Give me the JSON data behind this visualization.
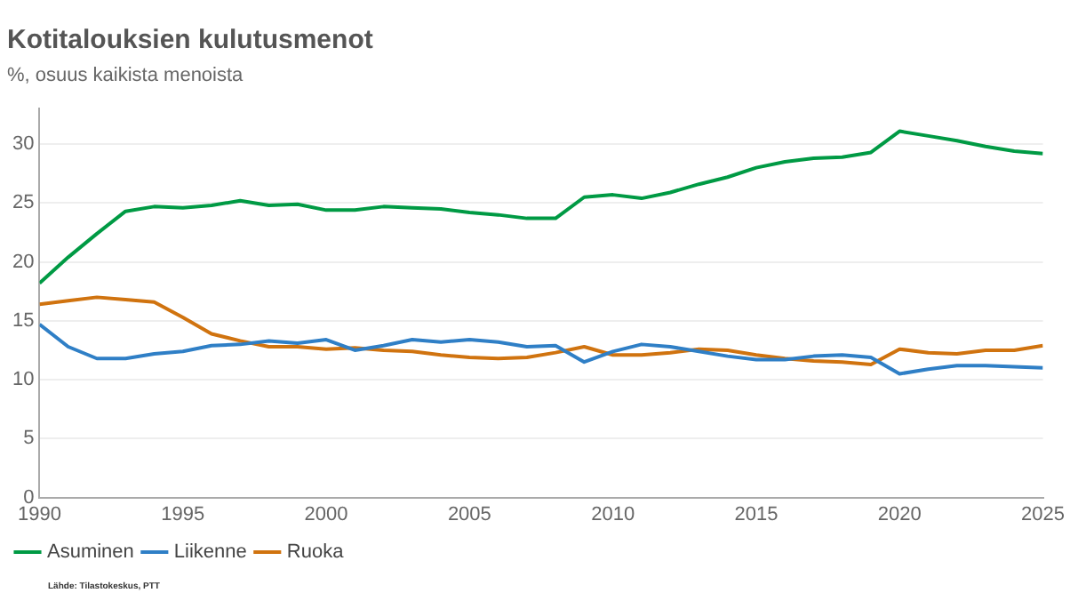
{
  "chart_data": {
    "type": "line",
    "title": "Kotitalouksien kulutusmenot",
    "subtitle": "%, osuus kaikista menoista",
    "annotations": [
      "Lähde: Tilastokeskus, PTT"
    ],
    "x": [
      1990,
      1991,
      1992,
      1993,
      1994,
      1995,
      1996,
      1997,
      1998,
      1999,
      2000,
      2001,
      2002,
      2003,
      2004,
      2005,
      2006,
      2007,
      2008,
      2009,
      2010,
      2011,
      2012,
      2013,
      2014,
      2015,
      2016,
      2017,
      2018,
      2019,
      2020,
      2021,
      2022,
      2023,
      2024,
      2025
    ],
    "series": [
      {
        "name": "Asuminen",
        "color": "#009a44",
        "values": [
          18.2,
          20.4,
          22.4,
          24.3,
          24.7,
          24.6,
          24.8,
          25.2,
          24.8,
          24.9,
          24.4,
          24.4,
          24.7,
          24.6,
          24.5,
          24.2,
          24.0,
          23.7,
          23.7,
          25.5,
          25.7,
          25.4,
          25.9,
          26.6,
          27.2,
          28.0,
          28.5,
          28.8,
          28.9,
          29.3,
          31.1,
          30.7,
          30.3,
          29.8,
          29.4,
          29.2
        ]
      },
      {
        "name": "Liikenne",
        "color": "#2f7fc6",
        "values": [
          14.7,
          12.8,
          11.8,
          11.8,
          12.2,
          12.4,
          12.9,
          13.0,
          13.3,
          13.1,
          13.4,
          12.5,
          12.9,
          13.4,
          13.2,
          13.4,
          13.2,
          12.8,
          12.9,
          11.5,
          12.4,
          13.0,
          12.8,
          12.4,
          12.0,
          11.7,
          11.7,
          12.0,
          12.1,
          11.9,
          10.5,
          10.9,
          11.2,
          11.2,
          11.1,
          11.0
        ]
      },
      {
        "name": "Ruoka",
        "color": "#d0730f",
        "values": [
          16.4,
          16.7,
          17.0,
          16.8,
          16.6,
          15.3,
          13.9,
          13.3,
          12.8,
          12.8,
          12.6,
          12.7,
          12.5,
          12.4,
          12.1,
          11.9,
          11.8,
          11.9,
          12.3,
          12.8,
          12.1,
          12.1,
          12.3,
          12.6,
          12.5,
          12.1,
          11.8,
          11.6,
          11.5,
          11.3,
          12.6,
          12.3,
          12.2,
          12.5,
          12.5,
          12.9
        ]
      }
    ],
    "xlim": [
      1990,
      2025
    ],
    "xticks": [
      1990,
      1995,
      2000,
      2005,
      2010,
      2015,
      2020,
      2025
    ],
    "ylim": [
      0,
      33
    ],
    "yticks": [
      0,
      5,
      10,
      15,
      20,
      25,
      30
    ],
    "grid": "y",
    "legend": "bottom left",
    "marker": "none",
    "line_style": "solid"
  }
}
